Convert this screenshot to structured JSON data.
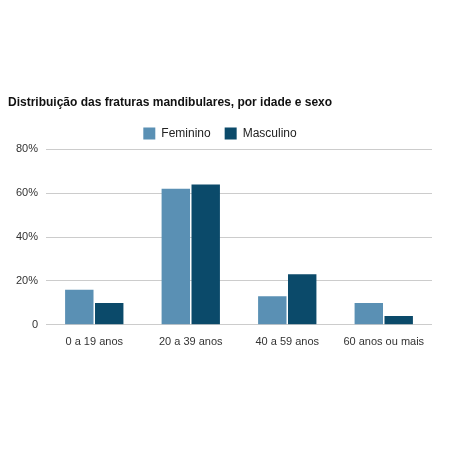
{
  "chart_data": {
    "type": "bar",
    "title": "Distribuição das fraturas mandibulares, por idade e sexo",
    "categories": [
      "0 a 19 anos",
      "20 a 39 anos",
      "40 a 59 anos",
      "60 anos ou mais"
    ],
    "series": [
      {
        "name": "Feminino",
        "color": "#5a90b4",
        "values": [
          16,
          62,
          13,
          10
        ]
      },
      {
        "name": "Masculino",
        "color": "#0b4a6a",
        "values": [
          10,
          64,
          23,
          4
        ]
      }
    ],
    "ylim": [
      0,
      80
    ],
    "yticks": [
      0,
      {
        "value": 20,
        "label": "20%"
      },
      {
        "value": 40,
        "label": "40%"
      },
      {
        "value": 60,
        "label": "60%"
      },
      {
        "value": 80,
        "label": "80%"
      }
    ],
    "grid": true,
    "legend": "top"
  }
}
